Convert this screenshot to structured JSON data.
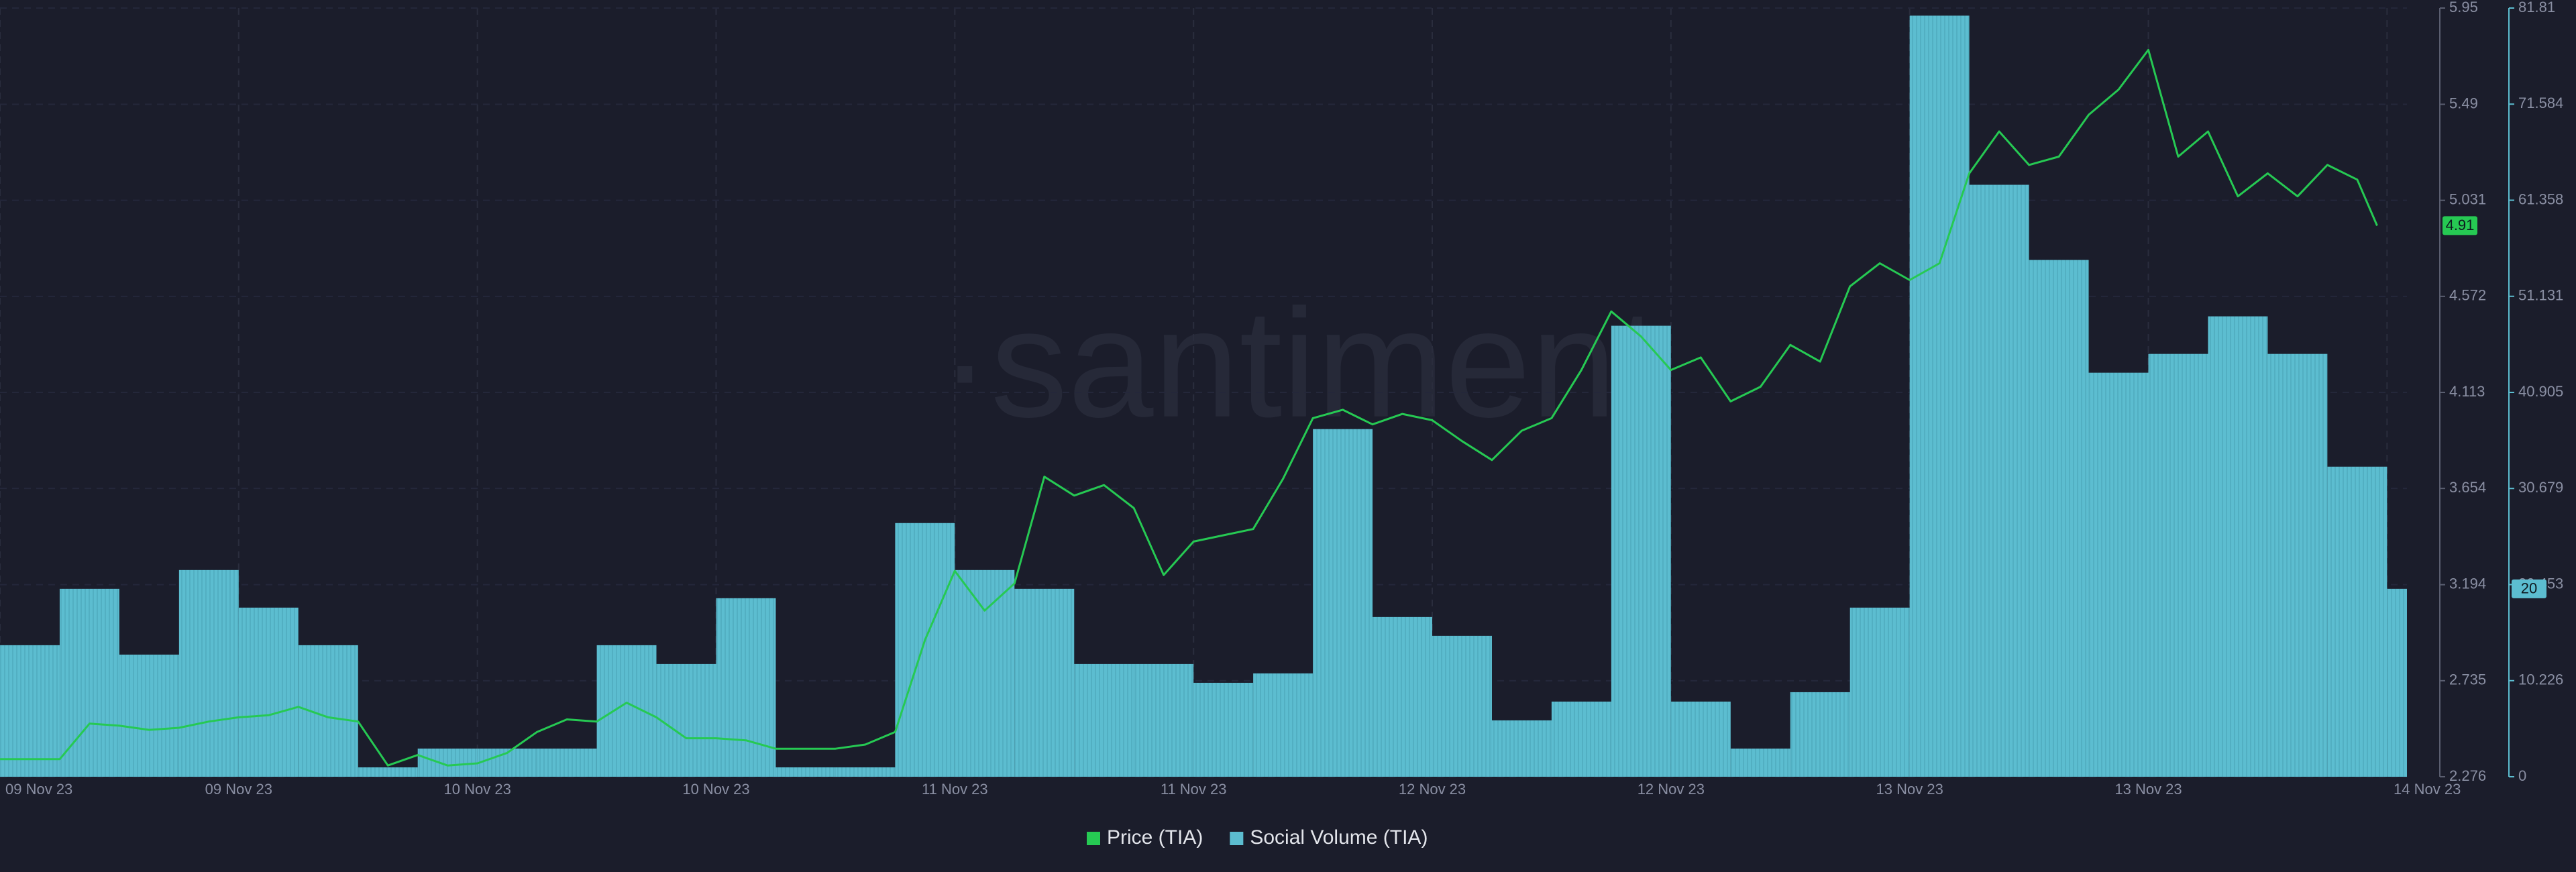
{
  "chart_data": {
    "type": "combo",
    "watermark": "·santiment",
    "xlim": [
      0,
      121
    ],
    "xticks": [
      {
        "value": 0,
        "label": "09 Nov 23"
      },
      {
        "value": 12,
        "label": "09 Nov 23"
      },
      {
        "value": 24,
        "label": "10 Nov 23"
      },
      {
        "value": 36,
        "label": "10 Nov 23"
      },
      {
        "value": 48,
        "label": "11 Nov 23"
      },
      {
        "value": 60,
        "label": "11 Nov 23"
      },
      {
        "value": 72,
        "label": "12 Nov 23"
      },
      {
        "value": 84,
        "label": "12 Nov 23"
      },
      {
        "value": 96,
        "label": "13 Nov 23"
      },
      {
        "value": 108,
        "label": "13 Nov 23"
      },
      {
        "value": 120,
        "label": "14 Nov 23"
      }
    ],
    "ylim": [
      2.276,
      5.95
    ],
    "yticks": [
      2.276,
      2.735,
      3.194,
      3.654,
      4.113,
      4.572,
      5.031,
      5.49,
      5.95
    ],
    "y2lim": [
      0,
      81.81
    ],
    "y2ticks": [
      0,
      10.226,
      20.453,
      30.679,
      40.905,
      51.131,
      61.358,
      71.584,
      81.81
    ],
    "grid": true,
    "legend": "bottom",
    "series": [
      {
        "name": "Price (TIA)",
        "type": "line",
        "color": "#26c953",
        "axis": "y",
        "x": [
          0,
          1.5,
          3,
          4.5,
          6,
          7.5,
          9,
          10.5,
          12,
          13.5,
          15,
          16.5,
          18,
          19.5,
          21,
          22.5,
          24,
          25.5,
          27,
          28.5,
          30,
          31.5,
          33,
          34.5,
          36,
          37.5,
          39,
          40.5,
          42,
          43.5,
          45,
          46.5,
          48,
          49.5,
          51,
          52.5,
          54,
          55.5,
          57,
          58.5,
          60,
          61.5,
          63,
          64.5,
          66,
          67.5,
          69,
          70.5,
          72,
          73.5,
          75,
          76.5,
          78,
          79.5,
          81,
          82.5,
          84,
          85.5,
          87,
          88.5,
          90,
          91.5,
          93,
          94.5,
          96,
          97.5,
          99,
          100.5,
          102,
          103.5,
          105,
          106.5,
          108,
          109.5,
          111,
          112.5,
          114,
          115.5,
          117,
          118.5,
          119.5
        ],
        "values": [
          2.36,
          2.36,
          2.36,
          2.53,
          2.52,
          2.5,
          2.51,
          2.54,
          2.56,
          2.57,
          2.61,
          2.56,
          2.54,
          2.33,
          2.38,
          2.33,
          2.34,
          2.39,
          2.49,
          2.55,
          2.54,
          2.63,
          2.56,
          2.46,
          2.46,
          2.45,
          2.41,
          2.41,
          2.41,
          2.43,
          2.49,
          2.93,
          3.26,
          3.07,
          3.2,
          3.71,
          3.62,
          3.67,
          3.56,
          3.24,
          3.4,
          3.43,
          3.46,
          3.7,
          3.99,
          4.03,
          3.96,
          4.01,
          3.98,
          3.88,
          3.79,
          3.93,
          3.99,
          4.22,
          4.5,
          4.38,
          4.22,
          4.28,
          4.07,
          4.14,
          4.34,
          4.26,
          4.62,
          4.73,
          4.65,
          4.73,
          5.16,
          5.36,
          5.2,
          5.24,
          5.44,
          5.56,
          5.75,
          5.24,
          5.36,
          5.05,
          5.16,
          5.05,
          5.2,
          5.13,
          4.91
        ]
      },
      {
        "name": "Social Volume (TIA)",
        "type": "bar",
        "color": "#5cbdd0",
        "axis": "y2",
        "bins": [
          0,
          3,
          6,
          9,
          12,
          15,
          18,
          21,
          24,
          27,
          30,
          33,
          36,
          39,
          42,
          45,
          48,
          51,
          54,
          57,
          60,
          63,
          66,
          69,
          72,
          75,
          78,
          81,
          84,
          87,
          90,
          93,
          96,
          99,
          102,
          105,
          108,
          111,
          114,
          117,
          120,
          121
        ],
        "values": [
          14,
          20,
          13,
          22,
          18,
          14,
          1,
          3,
          3,
          3,
          14,
          12,
          19,
          1,
          1,
          27,
          22,
          20,
          12,
          12,
          10,
          11,
          37,
          17,
          15,
          6,
          8,
          48,
          8,
          3,
          9,
          18,
          81,
          63,
          55,
          43,
          45,
          49,
          45,
          33,
          20
        ]
      }
    ],
    "current_values": [
      {
        "axis": "y",
        "value": 4.91,
        "label": "4.91"
      },
      {
        "axis": "y2",
        "value": 20,
        "label": "20"
      }
    ]
  }
}
